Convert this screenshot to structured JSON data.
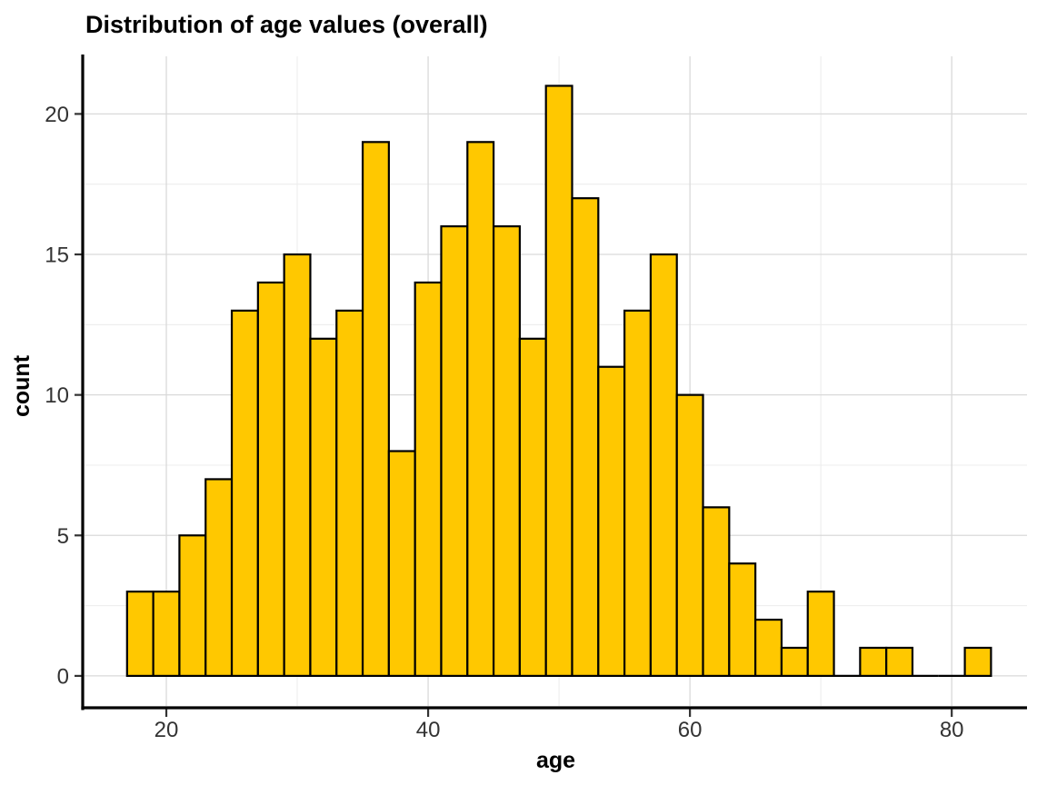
{
  "figure": {
    "title": "Distribution of age values (overall)"
  },
  "chart_data": {
    "type": "bar",
    "subtype": "histogram",
    "title": "Distribution of age values (overall)",
    "xlabel": "age",
    "ylabel": "count",
    "bin_start": 17,
    "bin_width": 2,
    "counts": [
      3,
      3,
      5,
      7,
      13,
      14,
      15,
      12,
      13,
      19,
      8,
      14,
      16,
      19,
      16,
      12,
      21,
      17,
      11,
      13,
      15,
      10,
      6,
      4,
      2,
      1,
      3,
      0,
      1,
      1,
      0,
      0,
      1
    ],
    "x_ticks": [
      20,
      40,
      60,
      80
    ],
    "x_tick_labels": [
      "20",
      "40",
      "60",
      "80"
    ],
    "y_ticks": [
      0,
      5,
      10,
      15,
      20
    ],
    "y_tick_labels": [
      "0",
      "5",
      "10",
      "15",
      "20"
    ],
    "x_minor_gridlines": [
      30,
      50,
      70
    ],
    "y_minor_gridlines": [
      2.5,
      7.5,
      12.5,
      17.5
    ],
    "xlim": [
      13.75,
      85.75
    ],
    "ylim": [
      -1.07,
      22.05
    ],
    "grid": true,
    "legend": "none",
    "styles": {
      "bar_fill": "#FFC800",
      "bar_stroke": "#000000",
      "bar_stroke_width": 2.2,
      "grid_major_color": "#D9D9D9",
      "grid_minor_color": "#ECECEC",
      "axis_line_color": "#000000",
      "tick_color": "#333333",
      "tick_label_color": "#333333",
      "axis_title_color": "#000000",
      "background": "#FFFFFF"
    }
  }
}
